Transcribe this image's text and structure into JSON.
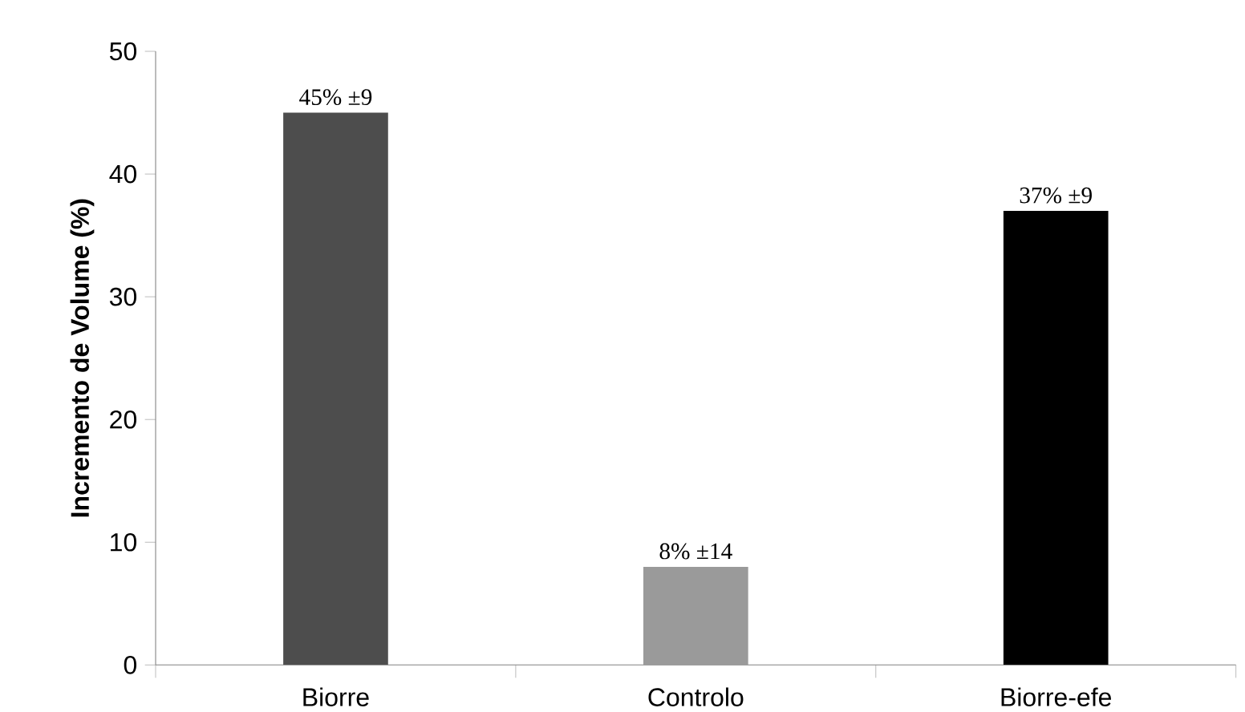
{
  "chart_data": {
    "type": "bar",
    "ylabel": "Incremento de Volume (%)",
    "categories": [
      "Biorre",
      "Controlo",
      "Biorre-efe"
    ],
    "values": [
      45,
      8,
      37
    ],
    "value_labels": [
      "45% ±9",
      "8% ±14",
      "37% ±9"
    ],
    "colors": [
      "#4d4d4d",
      "#9a9a9a",
      "#000000"
    ],
    "ylim": [
      0,
      50
    ],
    "yticks": [
      0,
      10,
      20,
      30,
      40,
      50
    ],
    "grid": false
  }
}
